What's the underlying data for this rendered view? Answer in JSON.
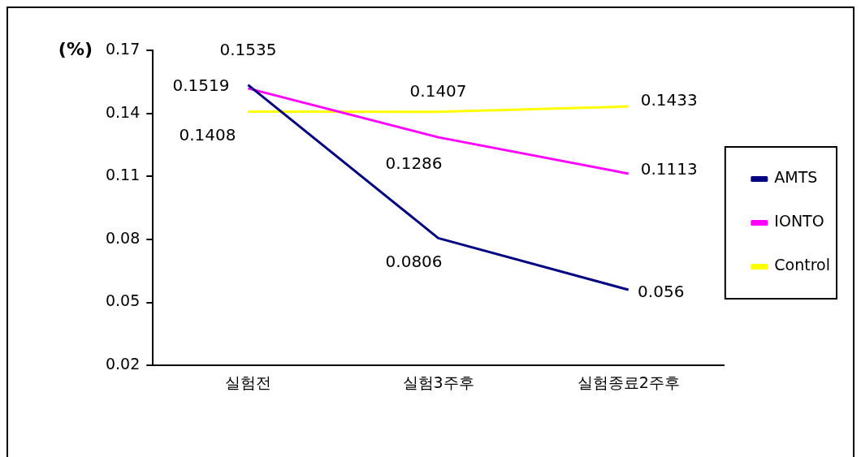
{
  "chart_data": {
    "type": "line",
    "ylabel": "(%)",
    "categories": [
      "실험전",
      "실험3주후",
      "실험종료2주후"
    ],
    "series": [
      {
        "name": "AMTS",
        "color": "#000080",
        "values": [
          0.1535,
          0.0806,
          0.056
        ]
      },
      {
        "name": "IONTO",
        "color": "#ff00ff",
        "values": [
          0.1519,
          0.1286,
          0.1113
        ]
      },
      {
        "name": "Control",
        "color": "#ffff00",
        "values": [
          0.1408,
          0.1407,
          0.1433
        ]
      }
    ],
    "ylim": [
      0.02,
      0.17
    ],
    "yticks": [
      0.02,
      0.05,
      0.08,
      0.11,
      0.14,
      0.17
    ],
    "grid": false,
    "legend": "right",
    "marker": "none",
    "line_style": "solid",
    "data_labels": true
  }
}
